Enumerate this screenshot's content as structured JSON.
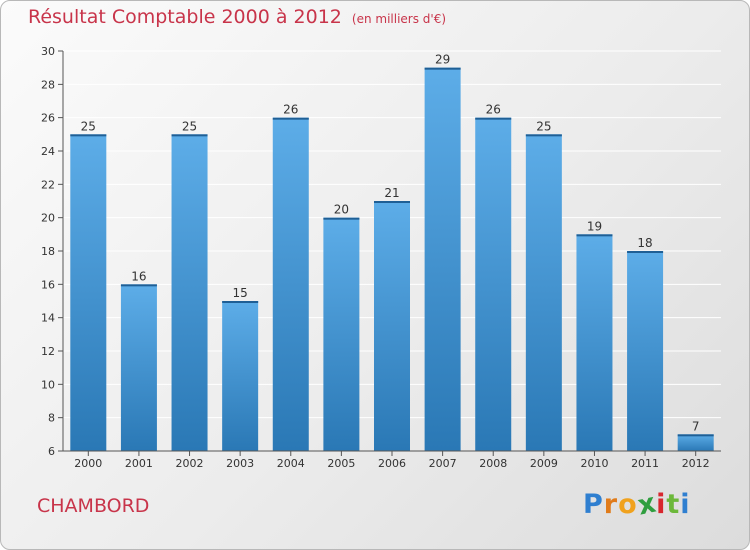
{
  "chart_data": {
    "type": "bar",
    "title": "Résultat Comptable 2000 à 2012",
    "subtitle": "(en milliers d'€)",
    "categories": [
      "2000",
      "2001",
      "2002",
      "2003",
      "2004",
      "2005",
      "2006",
      "2007",
      "2008",
      "2009",
      "2010",
      "2011",
      "2012"
    ],
    "values": [
      25,
      16,
      25,
      15,
      26,
      20,
      21,
      29,
      26,
      25,
      19,
      18,
      7
    ],
    "ylim": [
      6,
      30
    ],
    "yticks": [
      6,
      8,
      10,
      12,
      14,
      16,
      18,
      20,
      22,
      24,
      26,
      28,
      30
    ],
    "xlabel": "",
    "ylabel": "",
    "grid": true
  },
  "commune": "CHAMBORD",
  "brand": {
    "letters": [
      "P",
      "r",
      "o",
      "x",
      "i",
      "t",
      "i"
    ],
    "colors": [
      "#2f7fd0",
      "#e07b1a",
      "#f0a21e",
      "#2f9e3f",
      "#d8262e",
      "#6cb83a",
      "#2f7fd0"
    ]
  },
  "colors": {
    "bar_top": "#5dade8",
    "bar_bottom": "#2a78b5",
    "title": "#c8344a"
  }
}
